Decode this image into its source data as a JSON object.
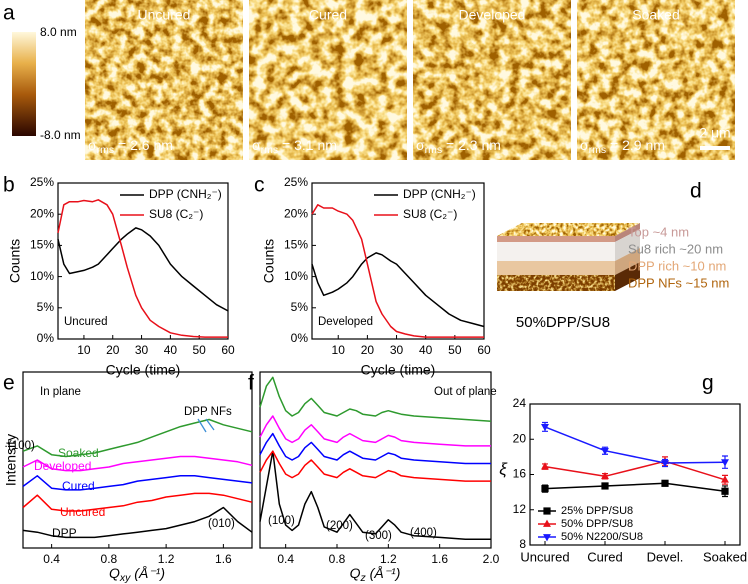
{
  "afm": {
    "label": "a",
    "images": [
      {
        "title": "Uncured",
        "sigma": "σ",
        "sigma_sub": "rms",
        "sigma_value": " = 2.6 nm"
      },
      {
        "title": "Cured",
        "sigma": "σ",
        "sigma_sub": "rms",
        "sigma_value": " = 3.1 nm"
      },
      {
        "title": "Developed",
        "sigma": "σ",
        "sigma_sub": "rms",
        "sigma_value": " = 2.3 nm"
      },
      {
        "title": "Soaked",
        "sigma": "σ",
        "sigma_sub": "rms",
        "sigma_value": " = 2.9 nm"
      }
    ],
    "colorbar": {
      "max": "8.0 nm",
      "min": "-8.0 nm"
    },
    "scale_bar": "2 μm"
  },
  "schematic": {
    "label": "d",
    "layers": [
      "Top ~4 nm",
      "Su8 rich ~20 nm",
      "DPP rich ~10 nm",
      "DPP NFs ~15 nm"
    ],
    "caption": "50%DPP/SU8"
  },
  "chart_data": [
    {
      "type": "line",
      "panel": "b",
      "xlabel": "Cycle (time)",
      "ylabel": "Counts",
      "annotations": [
        "Uncured"
      ],
      "x": [
        1,
        3,
        5,
        8,
        10,
        13,
        15,
        18,
        20,
        23,
        25,
        28,
        30,
        33,
        36,
        40,
        44,
        48,
        52,
        56,
        60
      ],
      "xlim": [
        1,
        60
      ],
      "xticks": [
        10,
        20,
        30,
        40,
        50,
        60
      ],
      "ylim": [
        0,
        25
      ],
      "yticks": [
        {
          "value": 0,
          "label": "0%"
        },
        {
          "value": 5,
          "label": "5%"
        },
        {
          "value": 10,
          "label": "10%"
        },
        {
          "value": 15,
          "label": "15%"
        },
        {
          "value": 20,
          "label": "20%"
        },
        {
          "value": 25,
          "label": "25%"
        }
      ],
      "series": [
        {
          "name": "DPP (CNH₂⁻)",
          "color": "#000000",
          "values": [
            16,
            12,
            10.5,
            10.8,
            11,
            11.5,
            12,
            13.5,
            14.5,
            16,
            16.8,
            17.8,
            17.5,
            16.5,
            15,
            12,
            10,
            8.5,
            7,
            5.5,
            4.5
          ]
        },
        {
          "name": "SU8 (C₂⁻)",
          "color": "#e8101a",
          "values": [
            17,
            21.5,
            22,
            22,
            22.2,
            22,
            22.3,
            21.5,
            20,
            15,
            11.5,
            7,
            5,
            3,
            2,
            1,
            0.6,
            0.4,
            0.3,
            0.3,
            0.3
          ]
        }
      ]
    },
    {
      "type": "line",
      "panel": "c",
      "xlabel": "Cycle (time)",
      "ylabel": "Counts",
      "annotations": [
        "Developed"
      ],
      "x": [
        1,
        3,
        5,
        8,
        10,
        13,
        15,
        18,
        20,
        23,
        25,
        28,
        30,
        33,
        36,
        40,
        44,
        48,
        52,
        56,
        60
      ],
      "xlim": [
        1,
        60
      ],
      "xticks": [
        10,
        20,
        30,
        40,
        50,
        60
      ],
      "ylim": [
        0,
        25
      ],
      "yticks": [
        {
          "value": 0,
          "label": "0%"
        },
        {
          "value": 5,
          "label": "5%"
        },
        {
          "value": 10,
          "label": "10%"
        },
        {
          "value": 15,
          "label": "15%"
        },
        {
          "value": 20,
          "label": "20%"
        },
        {
          "value": 25,
          "label": "25%"
        }
      ],
      "series": [
        {
          "name": "DPP (CNH₂⁻)",
          "color": "#000000",
          "values": [
            12,
            9,
            7,
            7.5,
            8,
            9,
            10,
            12,
            13,
            13.8,
            13.5,
            12.5,
            12,
            10.5,
            9,
            7,
            5.5,
            4,
            3,
            2.5,
            2
          ]
        },
        {
          "name": "SU8 (C₂⁻)",
          "color": "#e8101a",
          "values": [
            20,
            21.5,
            21,
            21,
            20.5,
            20,
            19,
            16,
            12,
            6,
            4,
            2,
            1.2,
            0.8,
            0.5,
            0.3,
            0.3,
            0.3,
            0.3,
            0.3,
            0.3
          ]
        }
      ]
    },
    {
      "type": "line",
      "panel": "e",
      "xlabel": "Q",
      "xlabel_sub": "xy",
      "xlabel_unit": " (Å⁻¹)",
      "ylabel": "Intensity",
      "annotations": [
        "In plane",
        "DPP NFs",
        "(100)",
        "(010)"
      ],
      "x": [
        0.2,
        0.3,
        0.4,
        0.5,
        0.6,
        0.7,
        0.8,
        0.9,
        1.0,
        1.1,
        1.2,
        1.3,
        1.4,
        1.5,
        1.6,
        1.7,
        1.8
      ],
      "xlim": [
        0.2,
        1.8
      ],
      "xticks": [
        0.4,
        0.8,
        1.2,
        1.6
      ],
      "ylim": [
        0,
        10
      ],
      "series": [
        {
          "name": "DPP",
          "color": "#000000",
          "values": [
            1.0,
            0.9,
            0.7,
            0.6,
            0.6,
            0.6,
            0.7,
            0.8,
            0.9,
            1.0,
            1.1,
            1.3,
            1.5,
            1.8,
            2.3,
            1.5,
            0.9
          ]
        },
        {
          "name": "Uncured",
          "color": "#ff0000",
          "values": [
            2.3,
            3.0,
            2.2,
            2.1,
            2.1,
            2.2,
            2.3,
            2.4,
            2.6,
            2.7,
            2.9,
            3.0,
            3.1,
            3.1,
            3.0,
            2.8,
            2.6
          ]
        },
        {
          "name": "Cured",
          "color": "#0000ff",
          "values": [
            3.5,
            4.1,
            3.4,
            3.3,
            3.3,
            3.4,
            3.5,
            3.6,
            3.8,
            3.9,
            4.0,
            4.1,
            4.1,
            4.0,
            3.9,
            3.8,
            3.7
          ]
        },
        {
          "name": "Developed",
          "color": "#ff00ff",
          "values": [
            4.6,
            5.0,
            4.5,
            4.4,
            4.4,
            4.5,
            4.6,
            4.8,
            4.9,
            5.0,
            5.1,
            5.2,
            5.2,
            5.1,
            5.0,
            4.9,
            4.7
          ]
        },
        {
          "name": "Soaked",
          "color": "#2e9a2e",
          "values": [
            5.5,
            5.8,
            5.3,
            5.2,
            5.3,
            5.4,
            5.6,
            5.8,
            6.0,
            6.3,
            6.6,
            6.9,
            7.1,
            7.3,
            7.0,
            6.8,
            6.6
          ]
        }
      ]
    },
    {
      "type": "line",
      "panel": "f",
      "xlabel": "Q",
      "xlabel_sub": "z",
      "xlabel_unit": " (Å⁻¹)",
      "annotations": [
        "Out of plane",
        "(100)",
        "(200)",
        "(300)",
        "(400)"
      ],
      "x": [
        0.2,
        0.25,
        0.3,
        0.35,
        0.4,
        0.45,
        0.5,
        0.55,
        0.6,
        0.65,
        0.7,
        0.8,
        0.85,
        0.9,
        0.95,
        1.0,
        1.1,
        1.15,
        1.2,
        1.25,
        1.3,
        1.4,
        1.6,
        1.8,
        2.0
      ],
      "xlim": [
        0.2,
        2.0
      ],
      "xticks": [
        0.4,
        0.8,
        1.2,
        1.6,
        {
          "value": 2.0,
          "label": "2.0"
        }
      ],
      "ylim": [
        0,
        10
      ],
      "series": [
        {
          "color": "#000000",
          "values": [
            1.5,
            3.5,
            5.5,
            2.5,
            1.3,
            1.0,
            1.3,
            2.5,
            3.2,
            2.3,
            1.2,
            0.9,
            1.4,
            1.9,
            1.4,
            0.9,
            0.8,
            1.2,
            1.6,
            1.3,
            0.9,
            0.7,
            0.6,
            0.5,
            0.5
          ]
        },
        {
          "color": "#ff0000",
          "values": [
            4.3,
            5.0,
            5.5,
            4.8,
            4.2,
            4.0,
            4.2,
            4.7,
            5.0,
            4.6,
            4.2,
            4.0,
            4.3,
            4.5,
            4.3,
            4.1,
            4.0,
            4.2,
            4.4,
            4.3,
            4.1,
            4.0,
            3.9,
            3.8,
            3.8
          ]
        },
        {
          "color": "#0000ff",
          "values": [
            5.3,
            6.0,
            6.5,
            5.8,
            5.2,
            5.0,
            5.2,
            5.7,
            6.0,
            5.6,
            5.2,
            5.0,
            5.3,
            5.5,
            5.3,
            5.1,
            5.0,
            5.2,
            5.4,
            5.3,
            5.1,
            5.0,
            4.9,
            4.8,
            4.8
          ]
        },
        {
          "color": "#ff00ff",
          "values": [
            6.3,
            7.0,
            7.5,
            6.8,
            6.2,
            6.0,
            6.2,
            6.7,
            7.0,
            6.6,
            6.2,
            6.0,
            6.3,
            6.5,
            6.3,
            6.1,
            6.0,
            6.2,
            6.4,
            6.3,
            6.1,
            6.0,
            5.9,
            5.8,
            5.8
          ]
        },
        {
          "color": "#2e9a2e",
          "values": [
            8.0,
            9.2,
            9.7,
            8.6,
            7.8,
            7.5,
            7.7,
            8.2,
            8.5,
            8.1,
            7.7,
            7.5,
            7.7,
            7.9,
            7.8,
            7.6,
            7.5,
            7.7,
            7.8,
            7.7,
            7.6,
            7.5,
            7.4,
            7.3,
            7.2
          ]
        }
      ]
    },
    {
      "type": "line",
      "panel": "g",
      "ylabel": "ξ",
      "categories": [
        "Uncured",
        "Cured",
        "Devel.",
        "Soaked"
      ],
      "ylim": [
        8,
        24
      ],
      "yticks": [
        8,
        12,
        16,
        20,
        24
      ],
      "series": [
        {
          "name": "25% DPP/SU8",
          "color": "#000000",
          "marker": "square",
          "values": [
            14.4,
            14.7,
            15.0,
            14.1
          ],
          "errors": [
            0.4,
            0.2,
            0.2,
            0.6
          ]
        },
        {
          "name": "50% DPP/SU8",
          "color": "#e8101a",
          "marker": "triangle-up",
          "values": [
            16.9,
            15.8,
            17.5,
            15.4
          ],
          "errors": [
            0.3,
            0.3,
            0.5,
            0.5
          ]
        },
        {
          "name": "50% N2200/SU8",
          "color": "#1a1aff",
          "marker": "triangle-down",
          "values": [
            21.4,
            18.7,
            17.3,
            17.4
          ],
          "errors": [
            0.5,
            0.4,
            0.4,
            0.7
          ]
        }
      ]
    }
  ]
}
